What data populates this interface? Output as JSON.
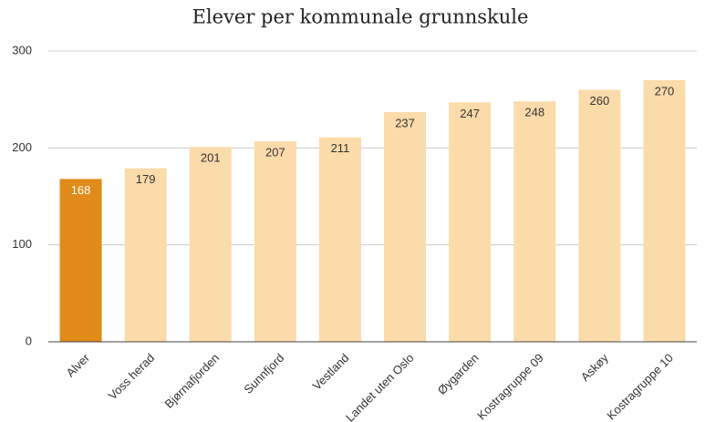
{
  "chart_data": {
    "type": "bar",
    "title": "Elever per kommunale grunnskule",
    "categories": [
      "Alver",
      "Voss herad",
      "Bjørnafjorden",
      "Sunnfjord",
      "Vestland",
      "Landet uten Oslo",
      "Øygarden",
      "Kostragruppe 09",
      "Askøy",
      "Kostragruppe 10"
    ],
    "values": [
      168,
      179,
      201,
      207,
      211,
      237,
      247,
      248,
      260,
      270
    ],
    "colors": [
      "#e08b1a",
      "#fbdbaa",
      "#fbdbaa",
      "#fbdbaa",
      "#fbdbaa",
      "#fbdbaa",
      "#fbdbaa",
      "#fbdbaa",
      "#fbdbaa",
      "#fbdbaa"
    ],
    "ylim": [
      0,
      300
    ],
    "yticks": [
      0,
      100,
      200,
      300
    ],
    "grid": true
  }
}
